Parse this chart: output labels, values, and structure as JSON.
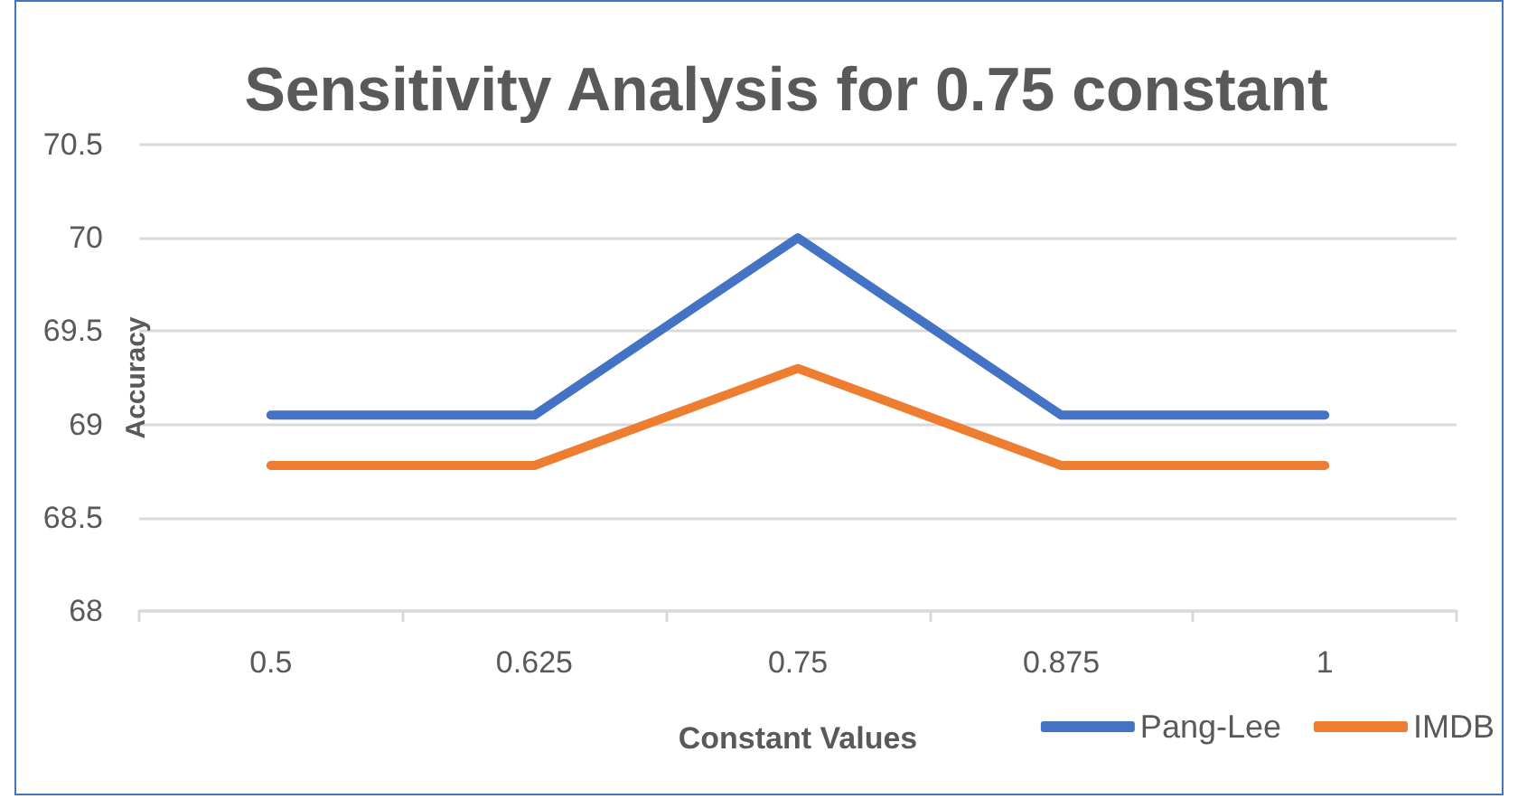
{
  "chart_data": {
    "type": "line",
    "title": "Sensitivity Analysis for 0.75 constant",
    "xlabel": "Constant Values",
    "ylabel": "Accuracy",
    "categories": [
      "0.5",
      "0.625",
      "0.75",
      "0.875",
      "1"
    ],
    "series": [
      {
        "name": "Pang-Lee",
        "color": "#4472c4",
        "values": [
          69.05,
          69.05,
          70.0,
          69.05,
          69.05
        ]
      },
      {
        "name": "IMDB",
        "color": "#ed7d31",
        "values": [
          68.78,
          68.78,
          69.3,
          68.78,
          68.78
        ]
      }
    ],
    "ylim": [
      68,
      70.5
    ],
    "yticks": [
      68,
      68.5,
      69,
      69.5,
      70,
      70.5
    ],
    "grid": "y",
    "legend": "bottom right",
    "marker": "none",
    "line_style": "solid"
  }
}
